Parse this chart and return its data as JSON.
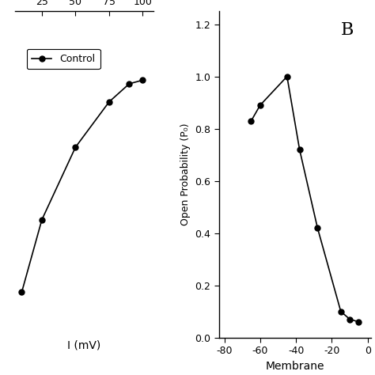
{
  "panel_A": {
    "x": [
      10,
      25,
      50,
      75,
      90,
      100
    ],
    "y": [
      0.425,
      0.465,
      0.505,
      0.53,
      0.54,
      0.542
    ],
    "xlabel": "I (mV)",
    "xticks": [
      25,
      50,
      75,
      100
    ],
    "xlim": [
      5,
      108
    ],
    "ylim": [
      0.4,
      0.58
    ],
    "legend_label": "Control"
  },
  "panel_B": {
    "x": [
      -65,
      -60,
      -45,
      -38,
      -28,
      -15,
      -10,
      -5
    ],
    "y": [
      0.83,
      0.89,
      1.0,
      0.72,
      0.42,
      0.1,
      0.07,
      0.06
    ],
    "xlabel": "Membrane",
    "ylabel": "Open Probability (P₀)",
    "label": "B",
    "yticks": [
      0.0,
      0.2,
      0.4,
      0.6,
      0.8,
      1.0,
      1.2
    ],
    "xticks": [
      -80,
      -60,
      -40,
      -20,
      0
    ],
    "xlim": [
      -83,
      2
    ],
    "ylim": [
      0.0,
      1.25
    ]
  },
  "line_color": "#000000",
  "marker": "o",
  "marker_size": 5,
  "marker_color": "#000000",
  "linewidth": 1.2,
  "bg_color": "#ffffff",
  "fig_width": 4.74,
  "fig_height": 4.74,
  "dpi": 100
}
